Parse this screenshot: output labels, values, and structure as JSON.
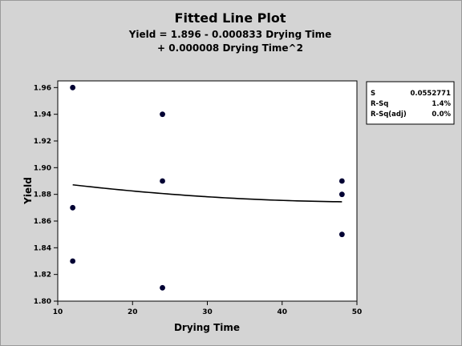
{
  "chart_data": {
    "type": "scatter",
    "title": "Fitted Line Plot",
    "subtitle_lines": [
      "Yield = 1.896 - 0.000833 Drying Time",
      "+ 0.000008 Drying Time^2"
    ],
    "xlabel": "Drying Time",
    "ylabel": "Yield",
    "xlim": [
      10,
      50
    ],
    "ylim": [
      1.8,
      1.965
    ],
    "x_ticks": [
      10,
      20,
      30,
      40,
      50
    ],
    "x_tick_labels": [
      "10",
      "20",
      "30",
      "40",
      "50"
    ],
    "y_ticks": [
      1.8,
      1.82,
      1.84,
      1.86,
      1.88,
      1.9,
      1.92,
      1.94,
      1.96
    ],
    "y_tick_labels": [
      "1.80",
      "1.82",
      "1.84",
      "1.86",
      "1.88",
      "1.90",
      "1.92",
      "1.94",
      "1.96"
    ],
    "points": [
      {
        "x": 12,
        "y": 1.96
      },
      {
        "x": 12,
        "y": 1.87
      },
      {
        "x": 12,
        "y": 1.83
      },
      {
        "x": 24,
        "y": 1.94
      },
      {
        "x": 24,
        "y": 1.89
      },
      {
        "x": 24,
        "y": 1.81
      },
      {
        "x": 48,
        "y": 1.89
      },
      {
        "x": 48,
        "y": 1.88
      },
      {
        "x": 48,
        "y": 1.85
      }
    ],
    "fit": {
      "intercept": 1.896,
      "linear": -0.000833,
      "quadratic": 8e-06,
      "x_range": [
        12,
        48
      ]
    },
    "grid": false,
    "point_color": "#000033",
    "line_color": "#000000",
    "stats": [
      {
        "label": "S",
        "value": "0.0552771"
      },
      {
        "label": "R-Sq",
        "value": "1.4%"
      },
      {
        "label": "R-Sq(adj)",
        "value": "0.0%"
      }
    ]
  }
}
